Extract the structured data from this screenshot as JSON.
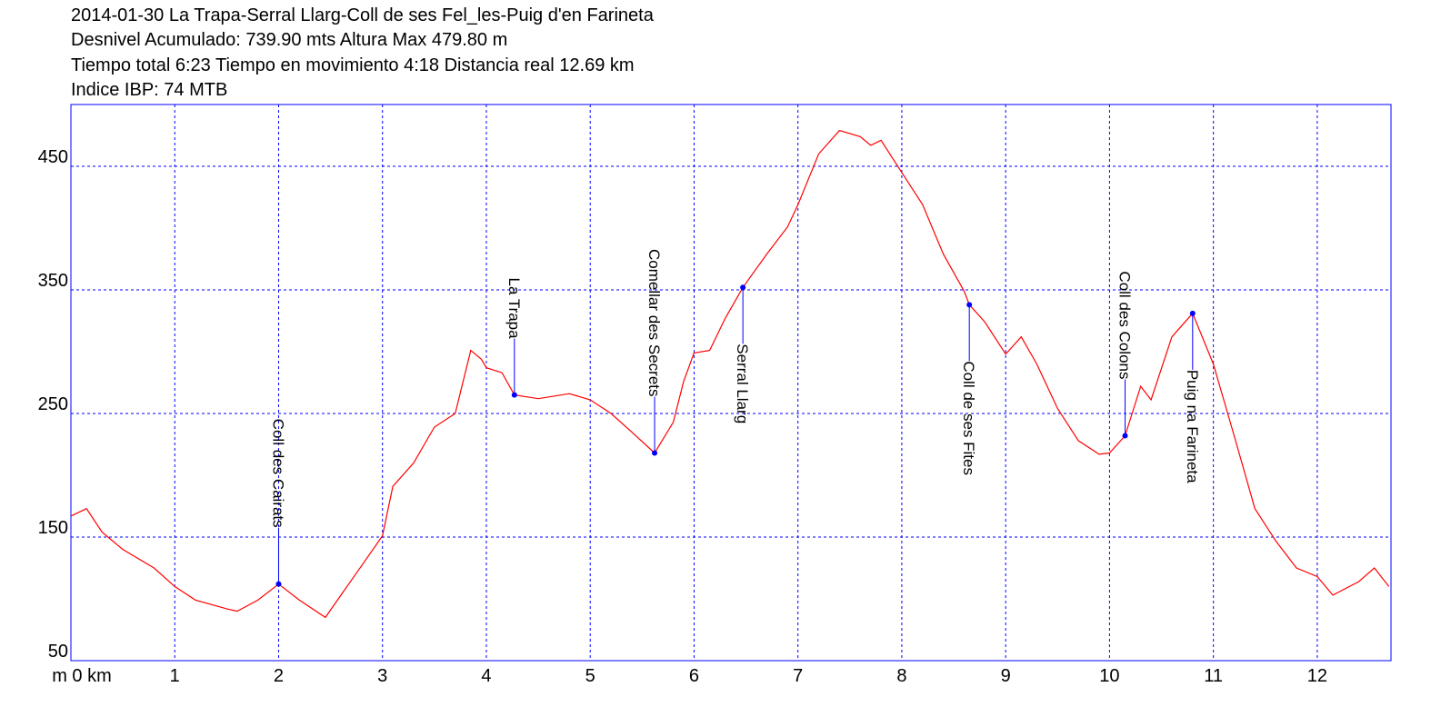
{
  "chart_data": {
    "type": "line",
    "title_lines": [
      "2014-01-30 La Trapa-Serral Llarg-Coll de ses Fel_les-Puig d'en Farineta",
      "Desnivel Acumulado: 739.90 mts  Altura Max 479.80 m",
      "Tiempo total 6:23 Tiempo en movimiento 4:18 Distancia real 12.69 km",
      "Indice IBP: 74 MTB"
    ],
    "x": [
      0,
      0.15,
      0.3,
      0.5,
      0.8,
      1.0,
      1.2,
      1.5,
      1.6,
      1.8,
      2.0,
      2.2,
      2.45,
      2.6,
      2.8,
      3.0,
      3.1,
      3.3,
      3.5,
      3.7,
      3.85,
      3.95,
      4.0,
      4.15,
      4.27,
      4.5,
      4.8,
      5.0,
      5.2,
      5.4,
      5.62,
      5.8,
      5.9,
      6.0,
      6.15,
      6.3,
      6.47,
      6.7,
      6.9,
      7.0,
      7.2,
      7.4,
      7.6,
      7.7,
      7.8,
      8.0,
      8.2,
      8.4,
      8.6,
      8.65,
      8.8,
      9.0,
      9.15,
      9.3,
      9.5,
      9.7,
      9.9,
      10.0,
      10.15,
      10.3,
      10.4,
      10.6,
      10.8,
      11.0,
      11.2,
      11.4,
      11.6,
      11.8,
      12.0,
      12.15,
      12.4,
      12.55,
      12.69
    ],
    "values": [
      167,
      173,
      154,
      140,
      125,
      110,
      99,
      92,
      90,
      99,
      112,
      99,
      85,
      103,
      127,
      151,
      191,
      210,
      239,
      250,
      301,
      294,
      287,
      283,
      265,
      262,
      266,
      261,
      250,
      235,
      218,
      243,
      276,
      299,
      301,
      327,
      352,
      379,
      401,
      419,
      460,
      479,
      474,
      467,
      471,
      445,
      419,
      379,
      349,
      338,
      324,
      298,
      312,
      290,
      254,
      228,
      217,
      218,
      232,
      272,
      261,
      312,
      331,
      290,
      232,
      173,
      147,
      125,
      118,
      103,
      114,
      125,
      110
    ],
    "color": "#ff0000",
    "waypoints": [
      {
        "name": "Coll des Cairats",
        "x": 2.0,
        "y": 112
      },
      {
        "name": "La Trapa",
        "x": 4.27,
        "y": 265
      },
      {
        "name": "Comellar des Secrets",
        "x": 5.62,
        "y": 218
      },
      {
        "name": "Serral Llarg",
        "x": 6.47,
        "y": 352
      },
      {
        "name": "Coll de ses Fites",
        "x": 8.65,
        "y": 338
      },
      {
        "name": "Coll des Colons",
        "x": 10.15,
        "y": 232
      },
      {
        "name": "Puig na Farineta",
        "x": 10.8,
        "y": 331
      }
    ],
    "waypoint_color": "#0000ff",
    "xlim": [
      0,
      12.71
    ],
    "ylim": [
      50,
      500
    ],
    "xticks": [
      {
        "value": 0,
        "label": "m 0 km"
      },
      1,
      2,
      3,
      4,
      5,
      6,
      7,
      8,
      9,
      10,
      11,
      12
    ],
    "yticks": [
      50,
      150,
      250,
      350,
      450
    ],
    "grid": true
  }
}
